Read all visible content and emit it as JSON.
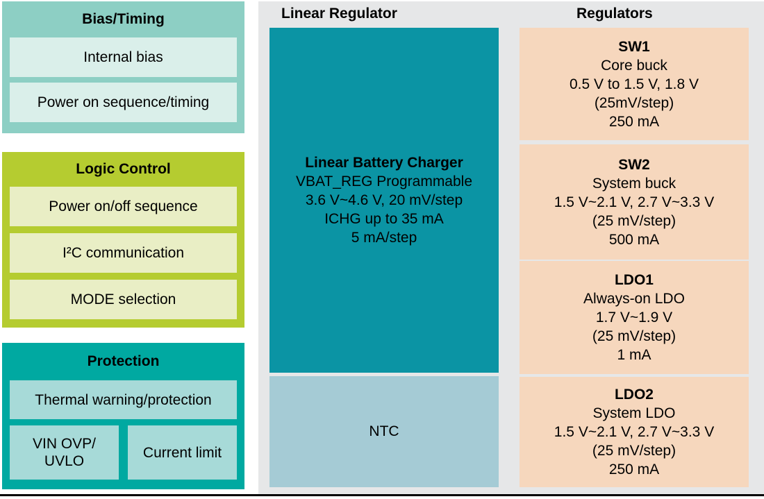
{
  "colors": {
    "page-bg": "#FFFFFF",
    "panel-bg": "#E6E7E8",
    "bias-outer": "#8DCFC4",
    "bias-inner": "#DAEFEA",
    "logic-outer": "#B5CC30",
    "logic-inner": "#E9EEC5",
    "protection-outer": "#00A9A1",
    "protection-inner": "#A7DAD8",
    "charger-block": "#0B94A4",
    "ntc-block": "#A5CBD5",
    "regulator-block": "#F6D7BD",
    "divider": "#000000",
    "text": "#000000"
  },
  "left_column": {
    "bias_timing": {
      "title": "Bias/Timing",
      "items": [
        "Internal bias",
        "Power on sequence/timing"
      ]
    },
    "logic_control": {
      "title": "Logic Control",
      "items": [
        "Power on/off sequence",
        "I²C communication",
        "MODE selection"
      ]
    },
    "protection": {
      "title": "Protection",
      "item_full": "Thermal warning/protection",
      "item_left_lines": [
        "VIN OVP/",
        "UVLO"
      ],
      "item_right": "Current limit"
    }
  },
  "linear_regulator": {
    "header": "Linear Regulator",
    "charger": {
      "lines": [
        "Linear Battery Charger",
        "VBAT_REG Programmable",
        "3.6 V~4.6 V, 20 mV/step",
        "ICHG up to 35 mA",
        "5 mA/step"
      ]
    },
    "ntc_label": "NTC"
  },
  "regulators": {
    "header": "Regulators",
    "blocks": [
      {
        "title": "SW1",
        "lines": [
          "Core buck",
          "0.5 V to 1.5 V, 1.8 V",
          "(25mV/step)",
          "250 mA"
        ]
      },
      {
        "title": "SW2",
        "lines": [
          "System buck",
          "1.5 V~2.1 V, 2.7 V~3.3 V",
          "(25 mV/step)",
          "500 mA"
        ]
      },
      {
        "title": "LDO1",
        "lines": [
          "Always-on LDO",
          "1.7 V~1.9 V",
          "(25 mV/step)",
          "1 mA"
        ]
      },
      {
        "title": "LDO2",
        "lines": [
          "System LDO",
          "1.5 V~2.1 V, 2.7 V~3.3 V",
          "(25 mV/step)",
          "250 mA"
        ]
      }
    ]
  }
}
